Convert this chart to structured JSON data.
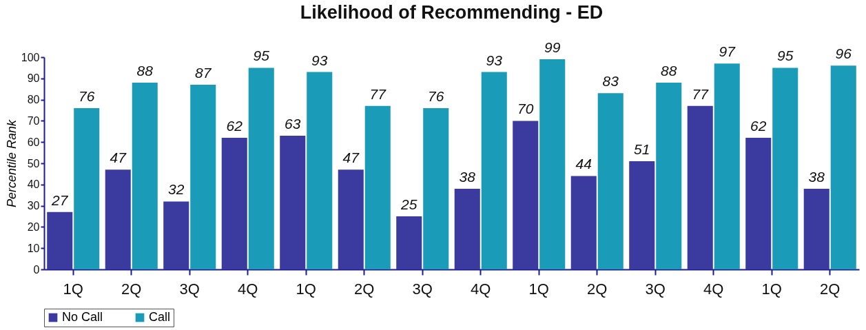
{
  "chart_data": {
    "type": "bar",
    "title": "Likelihood of Recommending - ED",
    "ylabel": "Percentile Rank",
    "categories": [
      "1Q",
      "2Q",
      "3Q",
      "4Q",
      "1Q",
      "2Q",
      "3Q",
      "4Q",
      "1Q",
      "2Q",
      "3Q",
      "4Q",
      "1Q",
      "2Q"
    ],
    "series": [
      {
        "name": "No Call",
        "color": "#3b3a9e",
        "values": [
          27,
          47,
          32,
          62,
          63,
          47,
          25,
          38,
          70,
          44,
          51,
          77,
          62,
          38
        ]
      },
      {
        "name": "Call",
        "color": "#1a9bb8",
        "values": [
          76,
          88,
          87,
          95,
          93,
          77,
          76,
          93,
          99,
          83,
          88,
          97,
          95,
          96
        ]
      }
    ],
    "ylim": [
      0,
      100
    ],
    "yticks": [
      0,
      10,
      20,
      30,
      40,
      50,
      60,
      70,
      80,
      90,
      100
    ],
    "data_labels": true,
    "legend": "bottom"
  }
}
